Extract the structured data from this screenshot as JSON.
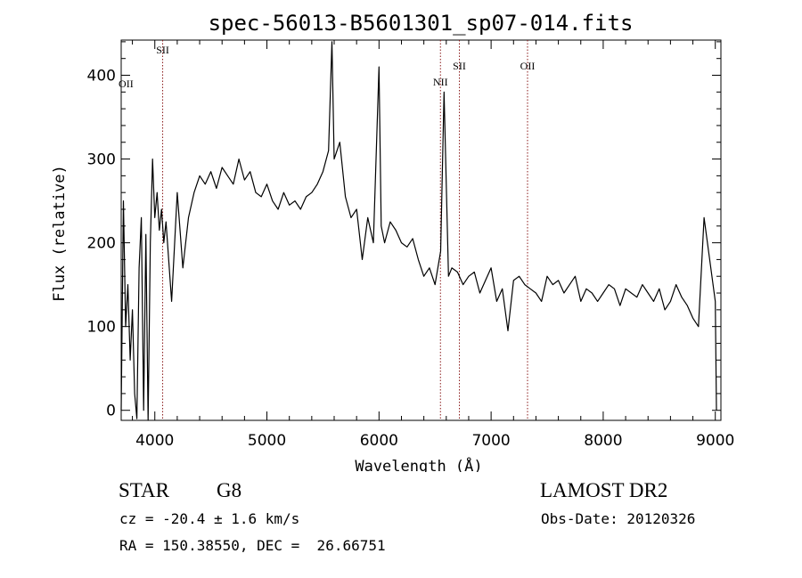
{
  "chart_data": {
    "type": "line",
    "title": "spec-56013-B5601301_sp07-014.fits",
    "xlabel": "Wavelength (Å)",
    "ylabel": "Flux (relative)",
    "xlim": [
      3700,
      9050
    ],
    "ylim": [
      -12,
      442
    ],
    "xticks": [
      4000,
      5000,
      6000,
      7000,
      8000,
      9000
    ],
    "yticks": [
      0,
      100,
      200,
      300,
      400
    ],
    "grid": false,
    "line_color": "#000000",
    "marker_color": "#8b1a1a",
    "series": [
      {
        "x": [
          3700,
          3720,
          3740,
          3760,
          3780,
          3800,
          3820,
          3840,
          3860,
          3880,
          3900,
          3920,
          3940,
          3960,
          3980,
          4000,
          4020,
          4040,
          4060,
          4080,
          4100,
          4150,
          4200,
          4250,
          4300,
          4350,
          4400,
          4450,
          4500,
          4550,
          4600,
          4650,
          4700,
          4750,
          4800,
          4850,
          4900,
          4950,
          5000,
          5050,
          5100,
          5150,
          5200,
          5250,
          5300,
          5350,
          5400,
          5450,
          5500,
          5550,
          5580,
          5600,
          5650,
          5700,
          5750,
          5800,
          5850,
          5900,
          5950,
          6000,
          6020,
          6050,
          6100,
          6150,
          6200,
          6250,
          6300,
          6350,
          6400,
          6450,
          6500,
          6550,
          6580,
          6620,
          6650,
          6700,
          6750,
          6800,
          6850,
          6900,
          6950,
          7000,
          7050,
          7100,
          7150,
          7200,
          7250,
          7300,
          7350,
          7400,
          7450,
          7500,
          7550,
          7600,
          7650,
          7700,
          7750,
          7800,
          7850,
          7900,
          7950,
          8000,
          8050,
          8100,
          8150,
          8200,
          8250,
          8300,
          8350,
          8400,
          8450,
          8500,
          8550,
          8600,
          8650,
          8700,
          8750,
          8800,
          8850,
          8900,
          8950,
          9000,
          9010
        ],
        "y": [
          0,
          250,
          100,
          150,
          60,
          120,
          20,
          -10,
          170,
          230,
          0,
          210,
          -12,
          200,
          300,
          230,
          260,
          215,
          240,
          200,
          225,
          130,
          260,
          170,
          230,
          260,
          280,
          270,
          285,
          265,
          290,
          280,
          270,
          300,
          275,
          285,
          260,
          255,
          270,
          250,
          240,
          260,
          245,
          250,
          240,
          255,
          260,
          270,
          285,
          310,
          440,
          300,
          320,
          255,
          230,
          240,
          180,
          230,
          200,
          410,
          220,
          200,
          225,
          215,
          200,
          195,
          205,
          180,
          160,
          170,
          150,
          190,
          380,
          160,
          170,
          165,
          150,
          160,
          165,
          140,
          155,
          170,
          130,
          145,
          95,
          155,
          160,
          150,
          145,
          140,
          130,
          160,
          150,
          155,
          140,
          150,
          160,
          130,
          145,
          140,
          130,
          140,
          150,
          145,
          125,
          145,
          140,
          135,
          150,
          140,
          130,
          145,
          120,
          130,
          150,
          135,
          125,
          110,
          100,
          230,
          180,
          130,
          0
        ]
      }
    ],
    "lines": [
      {
        "label": "SII",
        "wavelength": 4070
      },
      {
        "label": "NII",
        "wavelength": 6548
      },
      {
        "label": "SII",
        "wavelength": 6717
      },
      {
        "label": "OII",
        "wavelength": 7325
      }
    ],
    "extra_labels": [
      {
        "label": "OII",
        "wavelength": 3727,
        "flux": 390
      }
    ]
  },
  "info": {
    "class": "STAR",
    "subclass": "G8",
    "survey": "LAMOST DR2",
    "cz": "cz = -20.4 ± 1.6 km/s",
    "obsdate": "Obs-Date: 20120326",
    "radec": "RA = 150.38550, DEC =  26.66751"
  }
}
